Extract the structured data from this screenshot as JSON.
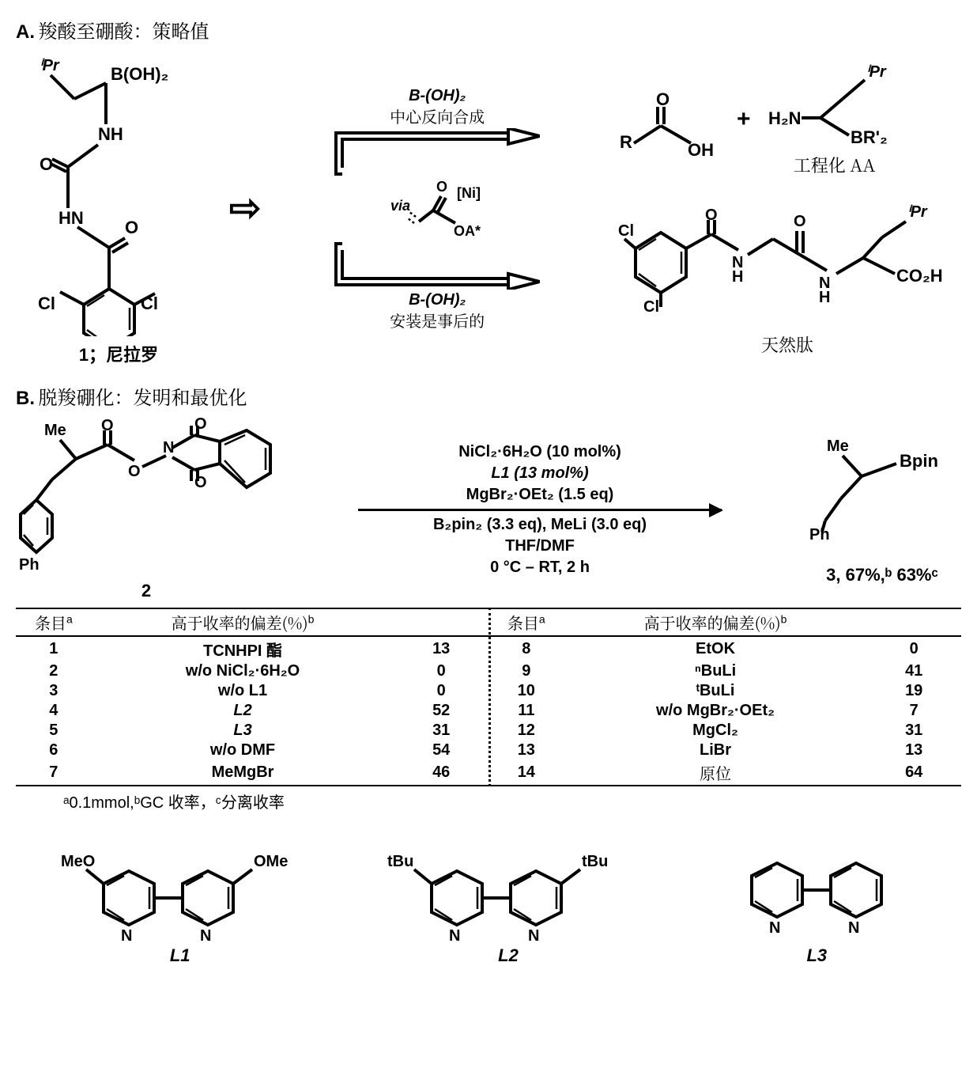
{
  "panelA": {
    "label": "A.",
    "title_zh": "羧酸至硼酸：策略值",
    "compound1_label": "1；尼拉罗",
    "top_branch": {
      "formula": "B-(OH)₂",
      "text_zh": "中心反向合成"
    },
    "bottom_branch": {
      "formula": "B-(OH)₂",
      "text_zh": "安装是事后的"
    },
    "via_label": "via",
    "via_formula_top": "O",
    "via_formula_metal": "[Ni]",
    "via_formula_bottom": "OA*",
    "eng_aa_zh": "工程化 AA",
    "native_peptide_zh": "天然肽"
  },
  "panelB": {
    "label": "B.",
    "title_zh": "脱羧硼化：发明和最优化",
    "compound2_label": "2",
    "conditions": {
      "line1": "NiCl₂·6H₂O (10 mol%)",
      "line2": "L1 (13 mol%)",
      "line3": "MgBr₂·OEt₂ (1.5 eq)",
      "line4": "B₂pin₂ (3.3 eq), MeLi (3.0 eq)",
      "line5": "THF/DMF",
      "line6": "0 °C – RT, 2 h"
    },
    "product_label": "3, 67%,ᵇ 63%ᶜ",
    "table": {
      "header_entry_zh": "条目",
      "header_entry_sup": "a",
      "header_dev_zh": "高于收率的偏差(%)",
      "header_dev_sup": "b",
      "left": [
        {
          "n": "1",
          "dev": "TCNHPI 酯",
          "y": "13"
        },
        {
          "n": "2",
          "dev": "w/o NiCl₂·6H₂O",
          "y": "0"
        },
        {
          "n": "3",
          "dev": "w/o L1",
          "y": "0"
        },
        {
          "n": "4",
          "dev": "L2",
          "y": "52"
        },
        {
          "n": "5",
          "dev": "L3",
          "y": "31"
        },
        {
          "n": "6",
          "dev": "w/o DMF",
          "y": "54"
        },
        {
          "n": "7",
          "dev": "MeMgBr",
          "y": "46"
        }
      ],
      "right": [
        {
          "n": "8",
          "dev": "EtOK",
          "y": "0"
        },
        {
          "n": "9",
          "dev": "ⁿBuLi",
          "y": "41"
        },
        {
          "n": "10",
          "dev": "ᵗBuLi",
          "y": "19"
        },
        {
          "n": "11",
          "dev": "w/o MgBr₂·OEt₂",
          "y": "7"
        },
        {
          "n": "12",
          "dev": "MgCl₂",
          "y": "31"
        },
        {
          "n": "13",
          "dev": "LiBr",
          "y": "13"
        },
        {
          "n": "14",
          "dev": "原位",
          "y": "64"
        }
      ]
    },
    "footnote": "ᵃ0.1mmol,ᵇGC 收率，ᶜ分离收率",
    "ligands": {
      "L1": {
        "label": "L1",
        "sub": "OMe"
      },
      "L2": {
        "label": "L2",
        "sub": "tBu"
      },
      "L3": {
        "label": "L3"
      }
    }
  },
  "style": {
    "text_color": "#000000",
    "background_color": "#ffffff",
    "bond_stroke_width": 4,
    "font_family": "Arial",
    "table_border_width": 2,
    "table_font_size": 20,
    "label_font_size": 22
  }
}
